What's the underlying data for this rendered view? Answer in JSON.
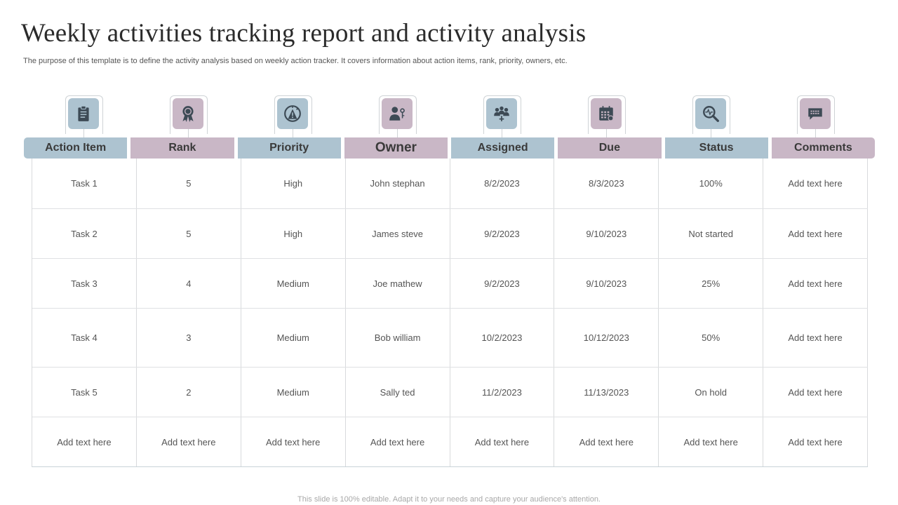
{
  "title": "Weekly activities tracking report and activity analysis",
  "subtitle": "The purpose of this template is to define the activity analysis based on weekly action tracker. It covers information about action items, rank, priority, owners, etc.",
  "colors": {
    "blue": "#adc3d0",
    "mauve": "#c9b7c6",
    "icon_fill": "#3d4a55"
  },
  "columns": [
    {
      "label": "Action Item",
      "icon": "clipboard-icon",
      "color": "blue"
    },
    {
      "label": "Rank",
      "icon": "award-ribbon-icon",
      "color": "mauve"
    },
    {
      "label": "Priority",
      "icon": "gauge-warning-icon",
      "color": "blue"
    },
    {
      "label": "Owner",
      "icon": "person-key-icon",
      "color": "mauve"
    },
    {
      "label": "Assigned",
      "icon": "team-icon",
      "color": "blue"
    },
    {
      "label": "Due",
      "icon": "calendar-icon",
      "color": "mauve"
    },
    {
      "label": "Status",
      "icon": "magnifier-pulse-icon",
      "color": "blue"
    },
    {
      "label": "Comments",
      "icon": "chat-bubble-icon",
      "color": "mauve"
    }
  ],
  "rows": [
    [
      "Task 1",
      "5",
      "High",
      "John  stephan",
      "8/2/2023",
      "8/3/2023",
      "100%",
      "Add text here"
    ],
    [
      "Task 2",
      "5",
      "High",
      "James  steve",
      "9/2/2023",
      "9/10/2023",
      "Not started",
      "Add text here"
    ],
    [
      "Task 3",
      "4",
      "Medium",
      "Joe  mathew",
      "9/2/2023",
      "9/10/2023",
      "25%",
      "Add text here"
    ],
    [
      "Task 4",
      "3",
      "Medium",
      "Bob william",
      "10/2/2023",
      "10/12/2023",
      "50%",
      "Add text here"
    ],
    [
      "Task 5",
      "2",
      "Medium",
      "Sally ted",
      "11/2/2023",
      "11/13/2023",
      "On hold",
      "Add text here"
    ],
    [
      "Add text here",
      "Add text here",
      "Add text here",
      "Add text here",
      "Add text here",
      "Add text here",
      "Add text here",
      "Add text here"
    ]
  ],
  "footer": "This slide is 100% editable. Adapt it to your needs and capture your audience's attention."
}
